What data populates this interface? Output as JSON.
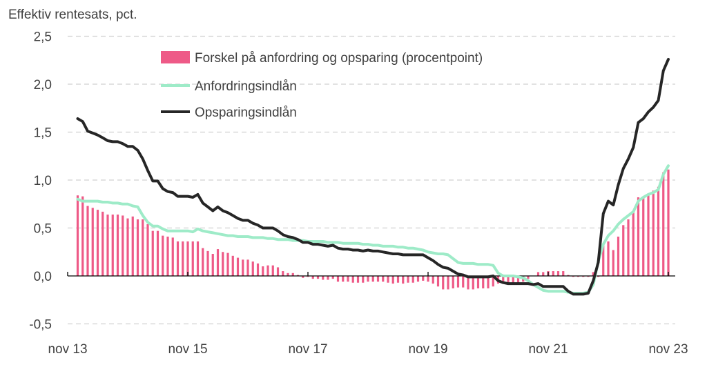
{
  "chart_data": {
    "type": "bar+line",
    "title": "Effektiv rentesats, pct.",
    "xlabel": "",
    "ylabel": "",
    "ylim": [
      -0.5,
      2.5
    ],
    "yticks": [
      -0.5,
      0.0,
      0.5,
      1.0,
      1.5,
      2.0,
      2.5
    ],
    "ytick_labels": [
      "-0,5",
      "0,0",
      "0,5",
      "1,0",
      "1,5",
      "2,0",
      "2,5"
    ],
    "xtick_labels": [
      "nov 13",
      "nov 15",
      "nov 17",
      "nov 19",
      "nov 21",
      "nov 23"
    ],
    "xtick_months": [
      "2013-11",
      "2015-11",
      "2017-11",
      "2019-11",
      "2021-11",
      "2023-11"
    ],
    "grid": "horizontal dashed",
    "legend": "top-left",
    "x": [
      "2014-01",
      "2014-02",
      "2014-03",
      "2014-04",
      "2014-05",
      "2014-06",
      "2014-07",
      "2014-08",
      "2014-09",
      "2014-10",
      "2014-11",
      "2014-12",
      "2015-01",
      "2015-02",
      "2015-03",
      "2015-04",
      "2015-05",
      "2015-06",
      "2015-07",
      "2015-08",
      "2015-09",
      "2015-10",
      "2015-11",
      "2015-12",
      "2016-01",
      "2016-02",
      "2016-03",
      "2016-04",
      "2016-05",
      "2016-06",
      "2016-07",
      "2016-08",
      "2016-09",
      "2016-10",
      "2016-11",
      "2016-12",
      "2017-01",
      "2017-02",
      "2017-03",
      "2017-04",
      "2017-05",
      "2017-06",
      "2017-07",
      "2017-08",
      "2017-09",
      "2017-10",
      "2017-11",
      "2017-12",
      "2018-01",
      "2018-02",
      "2018-03",
      "2018-04",
      "2018-05",
      "2018-06",
      "2018-07",
      "2018-08",
      "2018-09",
      "2018-10",
      "2018-11",
      "2018-12",
      "2019-01",
      "2019-02",
      "2019-03",
      "2019-04",
      "2019-05",
      "2019-06",
      "2019-07",
      "2019-08",
      "2019-09",
      "2019-10",
      "2019-11",
      "2019-12",
      "2020-01",
      "2020-02",
      "2020-03",
      "2020-04",
      "2020-05",
      "2020-06",
      "2020-07",
      "2020-08",
      "2020-09",
      "2020-10",
      "2020-11",
      "2020-12",
      "2021-01",
      "2021-02",
      "2021-03",
      "2021-04",
      "2021-05",
      "2021-06",
      "2021-07",
      "2021-08",
      "2021-09",
      "2021-10",
      "2021-11",
      "2021-12",
      "2022-01",
      "2022-02",
      "2022-03",
      "2022-04",
      "2022-05",
      "2022-06",
      "2022-07",
      "2022-08",
      "2022-09",
      "2022-10",
      "2022-11",
      "2022-12",
      "2023-01",
      "2023-02",
      "2023-03",
      "2023-04",
      "2023-05",
      "2023-06",
      "2023-07",
      "2023-08",
      "2023-09",
      "2023-10",
      "2023-11"
    ],
    "series": [
      {
        "name": "Forskel på anfordring og opsparing (procentpoint)",
        "kind": "bar",
        "color": "#EE5A87",
        "values": [
          0.84,
          0.83,
          0.73,
          0.71,
          0.69,
          0.67,
          0.64,
          0.64,
          0.64,
          0.63,
          0.6,
          0.62,
          0.59,
          0.59,
          0.54,
          0.47,
          0.47,
          0.42,
          0.41,
          0.4,
          0.36,
          0.36,
          0.36,
          0.36,
          0.36,
          0.29,
          0.26,
          0.23,
          0.28,
          0.25,
          0.24,
          0.21,
          0.19,
          0.17,
          0.17,
          0.15,
          0.13,
          0.1,
          0.11,
          0.11,
          0.09,
          0.05,
          0.03,
          0.03,
          0.01,
          -0.02,
          -0.01,
          -0.03,
          -0.03,
          -0.04,
          -0.04,
          -0.03,
          -0.06,
          -0.06,
          -0.06,
          -0.07,
          -0.07,
          -0.07,
          -0.06,
          -0.06,
          -0.06,
          -0.06,
          -0.07,
          -0.08,
          -0.07,
          -0.08,
          -0.07,
          -0.07,
          -0.06,
          -0.05,
          -0.06,
          -0.08,
          -0.11,
          -0.14,
          -0.14,
          -0.13,
          -0.12,
          -0.12,
          -0.14,
          -0.14,
          -0.13,
          -0.13,
          -0.13,
          -0.11,
          -0.08,
          -0.07,
          -0.08,
          -0.08,
          -0.07,
          -0.06,
          -0.03,
          0.0,
          0.04,
          0.04,
          0.05,
          0.05,
          0.05,
          0.05,
          0.01,
          -0.01,
          -0.01,
          -0.01,
          -0.01,
          0.04,
          -0.01,
          0.32,
          0.36,
          0.27,
          0.41,
          0.53,
          0.59,
          0.67,
          0.82,
          0.82,
          0.86,
          0.89,
          0.93,
          1.08,
          1.11
        ]
      },
      {
        "name": "Anfordringsindlån",
        "kind": "line",
        "color": "#9EEBC8",
        "values": [
          0.8,
          0.78,
          0.78,
          0.78,
          0.78,
          0.77,
          0.77,
          0.76,
          0.76,
          0.75,
          0.75,
          0.73,
          0.72,
          0.63,
          0.56,
          0.52,
          0.52,
          0.49,
          0.47,
          0.47,
          0.47,
          0.47,
          0.47,
          0.46,
          0.49,
          0.47,
          0.46,
          0.45,
          0.44,
          0.43,
          0.42,
          0.42,
          0.41,
          0.41,
          0.41,
          0.4,
          0.4,
          0.4,
          0.39,
          0.39,
          0.38,
          0.38,
          0.38,
          0.37,
          0.37,
          0.37,
          0.36,
          0.36,
          0.36,
          0.36,
          0.35,
          0.35,
          0.35,
          0.34,
          0.34,
          0.34,
          0.34,
          0.33,
          0.33,
          0.32,
          0.32,
          0.31,
          0.31,
          0.31,
          0.3,
          0.3,
          0.29,
          0.29,
          0.28,
          0.27,
          0.25,
          0.24,
          0.23,
          0.23,
          0.22,
          0.18,
          0.14,
          0.13,
          0.13,
          0.13,
          0.12,
          0.12,
          0.12,
          0.11,
          0.03,
          0.0,
          0.0,
          0.0,
          -0.01,
          -0.02,
          -0.05,
          -0.09,
          -0.12,
          -0.15,
          -0.16,
          -0.16,
          -0.16,
          -0.16,
          -0.17,
          -0.18,
          -0.18,
          -0.18,
          -0.17,
          -0.09,
          0.15,
          0.33,
          0.42,
          0.47,
          0.54,
          0.59,
          0.63,
          0.67,
          0.78,
          0.82,
          0.85,
          0.87,
          0.9,
          1.06,
          1.15
        ]
      },
      {
        "name": "Opsparingsindlån",
        "kind": "line",
        "color": "#262626",
        "values": [
          1.64,
          1.61,
          1.51,
          1.49,
          1.47,
          1.44,
          1.41,
          1.4,
          1.4,
          1.38,
          1.35,
          1.35,
          1.31,
          1.22,
          1.1,
          0.99,
          0.99,
          0.91,
          0.88,
          0.87,
          0.83,
          0.83,
          0.83,
          0.82,
          0.85,
          0.76,
          0.72,
          0.68,
          0.72,
          0.68,
          0.66,
          0.63,
          0.6,
          0.58,
          0.58,
          0.55,
          0.53,
          0.5,
          0.5,
          0.5,
          0.47,
          0.43,
          0.41,
          0.4,
          0.38,
          0.35,
          0.35,
          0.33,
          0.33,
          0.32,
          0.31,
          0.32,
          0.29,
          0.28,
          0.28,
          0.27,
          0.27,
          0.26,
          0.27,
          0.26,
          0.26,
          0.25,
          0.24,
          0.23,
          0.23,
          0.22,
          0.22,
          0.22,
          0.22,
          0.22,
          0.19,
          0.16,
          0.12,
          0.09,
          0.08,
          0.05,
          0.02,
          0.01,
          -0.01,
          -0.01,
          -0.01,
          -0.01,
          -0.01,
          0.0,
          -0.05,
          -0.07,
          -0.08,
          -0.08,
          -0.08,
          -0.08,
          -0.08,
          -0.09,
          -0.08,
          -0.11,
          -0.11,
          -0.11,
          -0.11,
          -0.11,
          -0.16,
          -0.19,
          -0.19,
          -0.19,
          -0.18,
          -0.05,
          0.14,
          0.65,
          0.78,
          0.74,
          0.95,
          1.12,
          1.22,
          1.34,
          1.6,
          1.64,
          1.71,
          1.76,
          1.83,
          2.14,
          2.26
        ]
      }
    ]
  }
}
